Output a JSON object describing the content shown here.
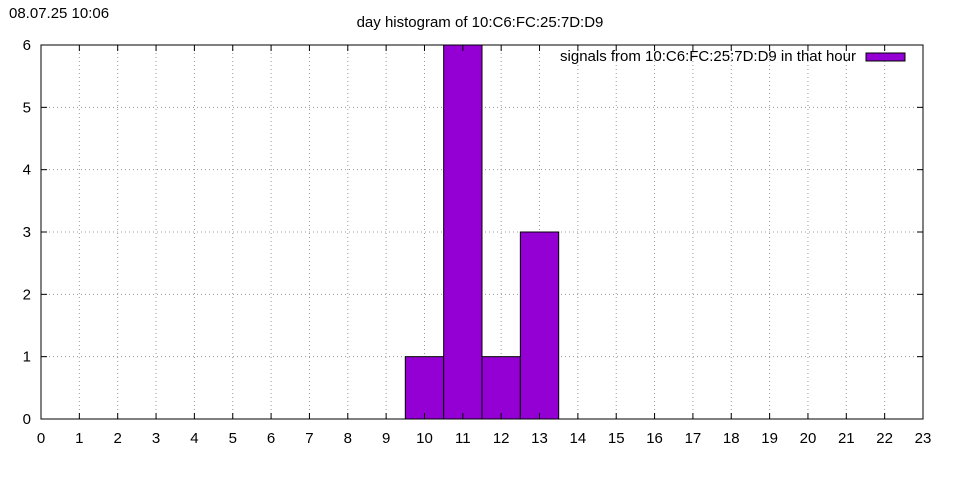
{
  "timestamp": "08.07.25 10:06",
  "chart_data": {
    "type": "bar",
    "title": "day histogram of 10:C6:FC:25:7D:D9",
    "xlabel": "",
    "ylabel": "",
    "categories": [
      "0",
      "1",
      "2",
      "3",
      "4",
      "5",
      "6",
      "7",
      "8",
      "9",
      "10",
      "11",
      "12",
      "13",
      "14",
      "15",
      "16",
      "17",
      "18",
      "19",
      "20",
      "21",
      "22",
      "23"
    ],
    "x_ticks": [
      "0",
      "1",
      "2",
      "3",
      "4",
      "5",
      "6",
      "7",
      "8",
      "9",
      "10",
      "11",
      "12",
      "13",
      "14",
      "15",
      "16",
      "17",
      "18",
      "19",
      "20",
      "21",
      "22",
      "23"
    ],
    "y_ticks": [
      "0",
      "1",
      "2",
      "3",
      "4",
      "5",
      "6"
    ],
    "xlim": [
      0,
      23
    ],
    "ylim": [
      0,
      6
    ],
    "grid": true,
    "legend_position": "top-right",
    "series": [
      {
        "name": "signals from 10:C6:FC:25:7D:D9 in that hour",
        "color": "#9400d3",
        "values": [
          0,
          0,
          0,
          0,
          0,
          0,
          0,
          0,
          0,
          0,
          1,
          6,
          1,
          3,
          0,
          0,
          0,
          0,
          0,
          0,
          0,
          0,
          0,
          0
        ]
      }
    ]
  }
}
